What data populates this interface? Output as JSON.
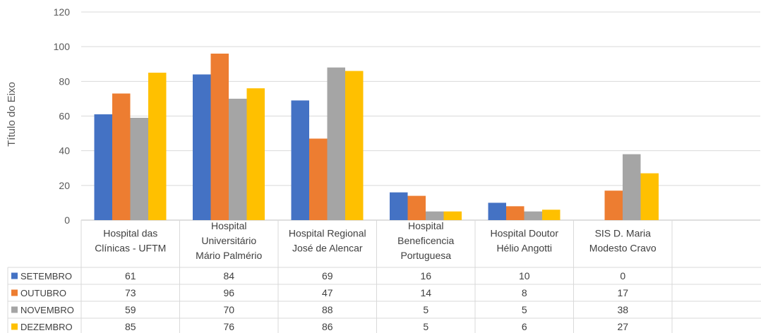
{
  "chart_data": {
    "type": "bar",
    "ylabel": "Título do Eixo",
    "ylim": [
      0,
      120
    ],
    "yticks": [
      0,
      20,
      40,
      60,
      80,
      100,
      120
    ],
    "grid": true,
    "legend": "data-table",
    "categories": [
      [
        "Hospital das",
        "Clínicas - UFTM"
      ],
      [
        "Hospital",
        "Universitário",
        "Mário Palmério"
      ],
      [
        "Hospital Regional",
        "José de Alencar"
      ],
      [
        "Hospital",
        "Beneficencia",
        "Portuguesa"
      ],
      [
        "Hospital Doutor",
        "Hélio Angotti"
      ],
      [
        "SIS D. Maria",
        "Modesto Cravo"
      ]
    ],
    "series": [
      {
        "name": "SETEMBRO",
        "color": "#4472C4",
        "values": [
          61,
          84,
          69,
          16,
          10,
          0
        ]
      },
      {
        "name": "OUTUBRO",
        "color": "#ED7D31",
        "values": [
          73,
          96,
          47,
          14,
          8,
          17
        ]
      },
      {
        "name": "NOVEMBRO",
        "color": "#A5A5A5",
        "values": [
          59,
          70,
          88,
          5,
          5,
          38
        ]
      },
      {
        "name": "DEZEMBRO",
        "color": "#FFC000",
        "values": [
          85,
          76,
          86,
          5,
          6,
          27
        ]
      }
    ]
  }
}
